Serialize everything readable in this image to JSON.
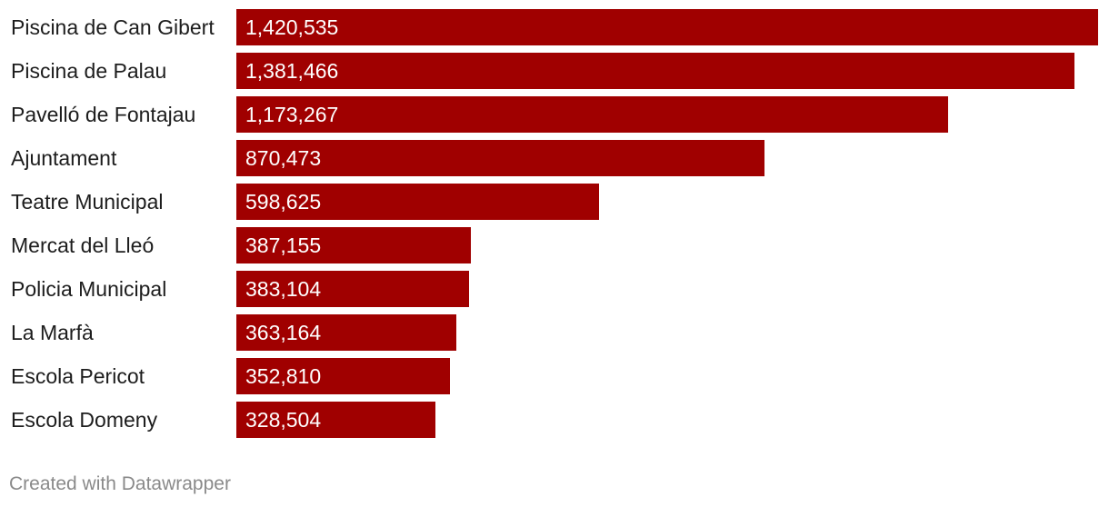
{
  "chart_data": {
    "type": "bar",
    "orientation": "horizontal",
    "categories": [
      "Piscina de Can Gibert",
      "Piscina de Palau",
      "Pavelló de Fontajau",
      "Ajuntament",
      "Teatre Municipal",
      "Mercat del Lleó",
      "Policia Municipal",
      "La Marfà",
      "Escola Pericot",
      "Escola Domeny"
    ],
    "values": [
      1420535,
      1381466,
      1173267,
      870473,
      598625,
      387155,
      383104,
      363164,
      352810,
      328504
    ],
    "value_labels": [
      "1,420,535",
      "1,381,466",
      "1,173,267",
      "870,473",
      "598,625",
      "387,155",
      "383,104",
      "363,164",
      "352,810",
      "328,504"
    ],
    "title": "",
    "xlabel": "",
    "ylabel": "",
    "xlim": [
      0,
      1420535
    ],
    "grid": false,
    "legend": "none",
    "bar_color": "#a00000"
  },
  "footer": {
    "credit": "Created with Datawrapper"
  }
}
